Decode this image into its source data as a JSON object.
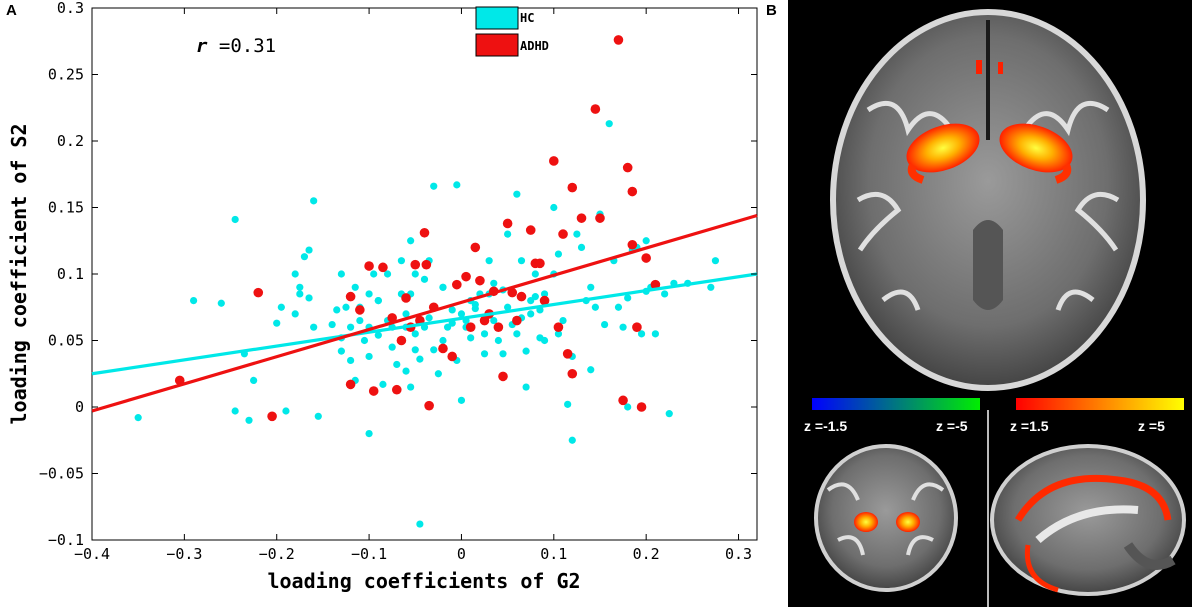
{
  "panels": {
    "a_label": "A",
    "b_label": "B"
  },
  "chart_data": {
    "type": "scatter",
    "xlabel": "loading coefficients of G2",
    "ylabel": "loading coefficient of S2",
    "xlim": [
      -0.4,
      0.32
    ],
    "ylim": [
      -0.1,
      0.3
    ],
    "xticks": [
      "-0.4",
      "-0.3",
      "-0.2",
      "-0.1",
      "0",
      "0.1",
      "0.2",
      "0.3"
    ],
    "yticks": [
      "-0.1",
      "-0.05",
      "0",
      "0.05",
      "0.1",
      "0.15",
      "0.2",
      "0.25",
      "0.3"
    ],
    "annotation": "r =0.31",
    "legend_position": "top-right",
    "grid": false,
    "series": [
      {
        "name": "HC",
        "color": "#00e8e8",
        "fit_line": [
          [
            -0.4,
            0.025
          ],
          [
            0.32,
            0.1
          ]
        ],
        "points": [
          [
            -0.35,
            -0.008
          ],
          [
            -0.29,
            0.08
          ],
          [
            -0.26,
            0.078
          ],
          [
            -0.245,
            0.141
          ],
          [
            -0.245,
            -0.003
          ],
          [
            -0.235,
            0.04
          ],
          [
            -0.23,
            -0.01
          ],
          [
            -0.225,
            0.02
          ],
          [
            -0.2,
            0.063
          ],
          [
            -0.195,
            0.075
          ],
          [
            -0.19,
            -0.003
          ],
          [
            -0.18,
            0.1
          ],
          [
            -0.18,
            0.07
          ],
          [
            -0.175,
            0.09
          ],
          [
            -0.175,
            0.085
          ],
          [
            -0.17,
            0.113
          ],
          [
            -0.165,
            0.118
          ],
          [
            -0.165,
            0.082
          ],
          [
            -0.16,
            0.155
          ],
          [
            -0.16,
            0.06
          ],
          [
            -0.155,
            -0.007
          ],
          [
            -0.14,
            0.062
          ],
          [
            -0.135,
            0.073
          ],
          [
            -0.13,
            0.1
          ],
          [
            -0.13,
            0.052
          ],
          [
            -0.13,
            0.042
          ],
          [
            -0.125,
            0.075
          ],
          [
            -0.12,
            0.083
          ],
          [
            -0.12,
            0.06
          ],
          [
            -0.12,
            0.035
          ],
          [
            -0.115,
            0.09
          ],
          [
            -0.115,
            0.02
          ],
          [
            -0.11,
            0.065
          ],
          [
            -0.11,
            0.075
          ],
          [
            -0.105,
            0.05
          ],
          [
            -0.1,
            0.085
          ],
          [
            -0.1,
            0.06
          ],
          [
            -0.1,
            0.038
          ],
          [
            -0.1,
            -0.02
          ],
          [
            -0.095,
            0.1
          ],
          [
            -0.09,
            0.08
          ],
          [
            -0.09,
            0.08
          ],
          [
            -0.09,
            0.054
          ],
          [
            -0.085,
            0.017
          ],
          [
            -0.08,
            0.1
          ],
          [
            -0.08,
            0.065
          ],
          [
            -0.075,
            0.06
          ],
          [
            -0.075,
            0.045
          ],
          [
            -0.07,
            0.032
          ],
          [
            -0.065,
            0.11
          ],
          [
            -0.065,
            0.085
          ],
          [
            -0.06,
            0.027
          ],
          [
            -0.06,
            0.07
          ],
          [
            -0.06,
            0.06
          ],
          [
            -0.055,
            0.125
          ],
          [
            -0.055,
            0.085
          ],
          [
            -0.055,
            0.015
          ],
          [
            -0.05,
            0.1
          ],
          [
            -0.05,
            0.055
          ],
          [
            -0.05,
            0.043
          ],
          [
            -0.045,
            0.036
          ],
          [
            -0.045,
            -0.088
          ],
          [
            -0.04,
            0.096
          ],
          [
            -0.04,
            0.06
          ],
          [
            -0.035,
            0.11
          ],
          [
            -0.035,
            0.067
          ],
          [
            -0.03,
            0.043
          ],
          [
            -0.03,
            0.166
          ],
          [
            -0.025,
            0.025
          ],
          [
            -0.02,
            0.09
          ],
          [
            -0.02,
            0.09
          ],
          [
            -0.02,
            0.05
          ],
          [
            -0.015,
            0.06
          ],
          [
            -0.01,
            0.073
          ],
          [
            -0.01,
            0.063
          ],
          [
            -0.005,
            0.167
          ],
          [
            -0.005,
            0.035
          ],
          [
            0.0,
            0.005
          ],
          [
            0.0,
            0.07
          ],
          [
            0.005,
            0.065
          ],
          [
            0.005,
            0.06
          ],
          [
            0.01,
            0.08
          ],
          [
            0.01,
            0.052
          ],
          [
            0.015,
            0.074
          ],
          [
            0.015,
            0.077
          ],
          [
            0.02,
            0.085
          ],
          [
            0.025,
            0.055
          ],
          [
            0.025,
            0.04
          ],
          [
            0.03,
            0.11
          ],
          [
            0.03,
            0.085
          ],
          [
            0.035,
            0.093
          ],
          [
            0.035,
            0.065
          ],
          [
            0.04,
            0.05
          ],
          [
            0.045,
            0.04
          ],
          [
            0.045,
            0.088
          ],
          [
            0.05,
            0.13
          ],
          [
            0.05,
            0.075
          ],
          [
            0.055,
            0.087
          ],
          [
            0.055,
            0.062
          ],
          [
            0.06,
            0.16
          ],
          [
            0.06,
            0.055
          ],
          [
            0.065,
            0.11
          ],
          [
            0.065,
            0.067
          ],
          [
            0.07,
            0.042
          ],
          [
            0.07,
            0.015
          ],
          [
            0.075,
            0.08
          ],
          [
            0.075,
            0.07
          ],
          [
            0.08,
            0.1
          ],
          [
            0.08,
            0.083
          ],
          [
            0.085,
            0.052
          ],
          [
            0.085,
            0.073
          ],
          [
            0.09,
            0.05
          ],
          [
            0.09,
            0.085
          ],
          [
            0.1,
            0.15
          ],
          [
            0.1,
            0.1
          ],
          [
            0.105,
            0.115
          ],
          [
            0.105,
            0.055
          ],
          [
            0.11,
            0.065
          ],
          [
            0.115,
            0.002
          ],
          [
            0.12,
            -0.025
          ],
          [
            0.12,
            0.038
          ],
          [
            0.125,
            0.13
          ],
          [
            0.13,
            0.12
          ],
          [
            0.135,
            0.08
          ],
          [
            0.14,
            0.028
          ],
          [
            0.14,
            0.09
          ],
          [
            0.145,
            0.075
          ],
          [
            0.15,
            0.145
          ],
          [
            0.155,
            0.062
          ],
          [
            0.16,
            0.213
          ],
          [
            0.165,
            0.11
          ],
          [
            0.17,
            0.075
          ],
          [
            0.175,
            0.06
          ],
          [
            0.18,
            0.082
          ],
          [
            0.18,
            0.0
          ],
          [
            0.185,
            0.118
          ],
          [
            0.19,
            0.12
          ],
          [
            0.195,
            0.055
          ],
          [
            0.2,
            0.125
          ],
          [
            0.2,
            0.087
          ],
          [
            0.205,
            0.09
          ],
          [
            0.21,
            0.055
          ],
          [
            0.22,
            0.085
          ],
          [
            0.225,
            -0.005
          ],
          [
            0.23,
            0.093
          ],
          [
            0.245,
            0.093
          ],
          [
            0.27,
            0.09
          ],
          [
            0.275,
            0.11
          ]
        ]
      },
      {
        "name": "ADHD",
        "color": "#ee1111",
        "fit_line": [
          [
            -0.4,
            -0.003
          ],
          [
            0.32,
            0.144
          ]
        ],
        "points": [
          [
            -0.305,
            0.02
          ],
          [
            -0.22,
            0.086
          ],
          [
            -0.205,
            -0.007
          ],
          [
            -0.12,
            0.083
          ],
          [
            -0.12,
            0.017
          ],
          [
            -0.11,
            0.073
          ],
          [
            -0.1,
            0.106
          ],
          [
            -0.095,
            0.012
          ],
          [
            -0.085,
            0.105
          ],
          [
            -0.075,
            0.067
          ],
          [
            -0.07,
            0.013
          ],
          [
            -0.065,
            0.05
          ],
          [
            -0.06,
            0.082
          ],
          [
            -0.055,
            0.06
          ],
          [
            -0.05,
            0.107
          ],
          [
            -0.045,
            0.065
          ],
          [
            -0.04,
            0.131
          ],
          [
            -0.038,
            0.107
          ],
          [
            -0.035,
            0.001
          ],
          [
            -0.03,
            0.075
          ],
          [
            -0.02,
            0.044
          ],
          [
            -0.01,
            0.038
          ],
          [
            -0.005,
            0.092
          ],
          [
            0.005,
            0.098
          ],
          [
            0.01,
            0.06
          ],
          [
            0.015,
            0.12
          ],
          [
            0.02,
            0.095
          ],
          [
            0.025,
            0.065
          ],
          [
            0.03,
            0.07
          ],
          [
            0.035,
            0.087
          ],
          [
            0.04,
            0.06
          ],
          [
            0.045,
            0.023
          ],
          [
            0.05,
            0.138
          ],
          [
            0.055,
            0.086
          ],
          [
            0.06,
            0.065
          ],
          [
            0.065,
            0.083
          ],
          [
            0.075,
            0.133
          ],
          [
            0.08,
            0.108
          ],
          [
            0.085,
            0.108
          ],
          [
            0.09,
            0.08
          ],
          [
            0.1,
            0.185
          ],
          [
            0.105,
            0.06
          ],
          [
            0.11,
            0.13
          ],
          [
            0.115,
            0.04
          ],
          [
            0.12,
            0.165
          ],
          [
            0.12,
            0.025
          ],
          [
            0.13,
            0.142
          ],
          [
            0.145,
            0.224
          ],
          [
            0.15,
            0.142
          ],
          [
            0.17,
            0.276
          ],
          [
            0.175,
            0.005
          ],
          [
            0.18,
            0.18
          ],
          [
            0.185,
            0.162
          ],
          [
            0.185,
            0.122
          ],
          [
            0.19,
            0.06
          ],
          [
            0.195,
            0.0
          ],
          [
            0.2,
            0.112
          ],
          [
            0.21,
            0.092
          ]
        ]
      }
    ]
  },
  "panel_b": {
    "colorbar_neg": {
      "left_label": "z =-1.5",
      "right_label": "z =-5"
    },
    "colorbar_pos": {
      "left_label": "z =1.5",
      "right_label": "z =5"
    }
  }
}
